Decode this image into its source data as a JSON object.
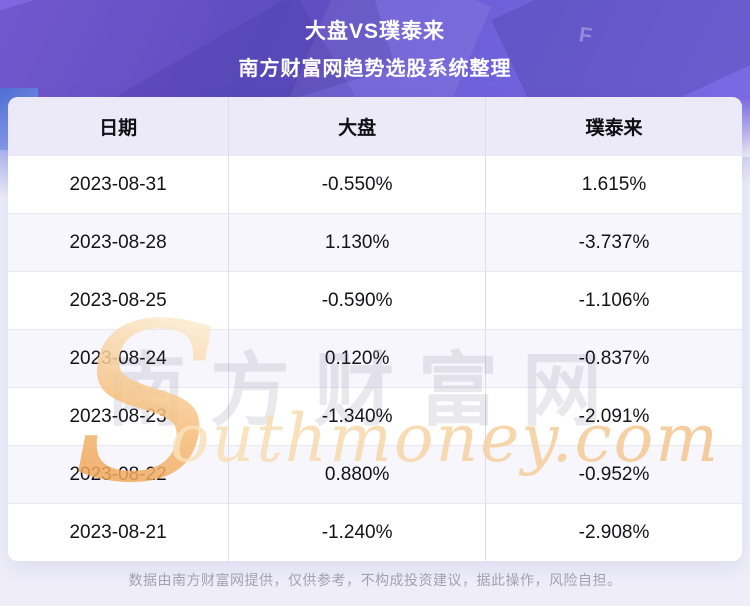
{
  "banner": {
    "title": "大盘VS璞泰来",
    "subtitle": "南方财富网趋势选股系统整理",
    "texture_letter": "F"
  },
  "chart_data": {
    "type": "table",
    "title": "大盘VS璞泰来",
    "subtitle": "南方财富网趋势选股系统整理",
    "columns": [
      "日期",
      "大盘",
      "璞泰来"
    ],
    "rows": [
      [
        "2023-08-31",
        "-0.550%",
        "1.615%"
      ],
      [
        "2023-08-28",
        "1.130%",
        "-3.737%"
      ],
      [
        "2023-08-25",
        "-0.590%",
        "-1.106%"
      ],
      [
        "2023-08-24",
        "0.120%",
        "-0.837%"
      ],
      [
        "2023-08-23",
        "-1.340%",
        "-2.091%"
      ],
      [
        "2023-08-22",
        "0.880%",
        "-0.952%"
      ],
      [
        "2023-08-21",
        "-1.240%",
        "-2.908%"
      ]
    ],
    "dates": [
      "2023-08-31",
      "2023-08-28",
      "2023-08-25",
      "2023-08-24",
      "2023-08-23",
      "2023-08-22",
      "2023-08-21"
    ],
    "series": [
      {
        "name": "大盘",
        "values": [
          -0.55,
          1.13,
          -0.59,
          0.12,
          -1.34,
          0.88,
          -1.24
        ]
      },
      {
        "name": "璞泰来",
        "values": [
          1.615,
          -3.737,
          -1.106,
          -0.837,
          -2.091,
          -0.952,
          -2.908
        ]
      }
    ],
    "unit": "%"
  },
  "table": {
    "columns": [
      {
        "label": "日期"
      },
      {
        "label": "大盘"
      },
      {
        "label": "璞泰来"
      }
    ],
    "rows": [
      {
        "date": "2023-08-31",
        "market": "-0.550%",
        "stock": "1.615%"
      },
      {
        "date": "2023-08-28",
        "market": "1.130%",
        "stock": "-3.737%"
      },
      {
        "date": "2023-08-25",
        "market": "-0.590%",
        "stock": "-1.106%"
      },
      {
        "date": "2023-08-24",
        "market": "0.120%",
        "stock": "-0.837%"
      },
      {
        "date": "2023-08-23",
        "market": "-1.340%",
        "stock": "-2.091%"
      },
      {
        "date": "2023-08-22",
        "market": "0.880%",
        "stock": "-0.952%"
      },
      {
        "date": "2023-08-21",
        "market": "-1.240%",
        "stock": "-2.908%"
      }
    ]
  },
  "watermark": {
    "brand_cn": "南方财富网",
    "brand_en_initial": "S",
    "brand_en_rest": "outhmoney.com"
  },
  "footer": {
    "disclaimer": "数据由南方财富网提供，仅供参考，不构成投资建议，据此操作，风险自担。"
  },
  "colors": {
    "banner_gradient_start": "#8467e2",
    "banner_gradient_end": "#7b6ae3",
    "accent_blue": "#4e6ed5",
    "header_row_bg": "#eceaf8",
    "row_alt_bg": "#f7f6fd",
    "watermark_orange": "#ef9f4f",
    "footer_text": "#a3a1b1",
    "page_bg": "#efeef8"
  }
}
